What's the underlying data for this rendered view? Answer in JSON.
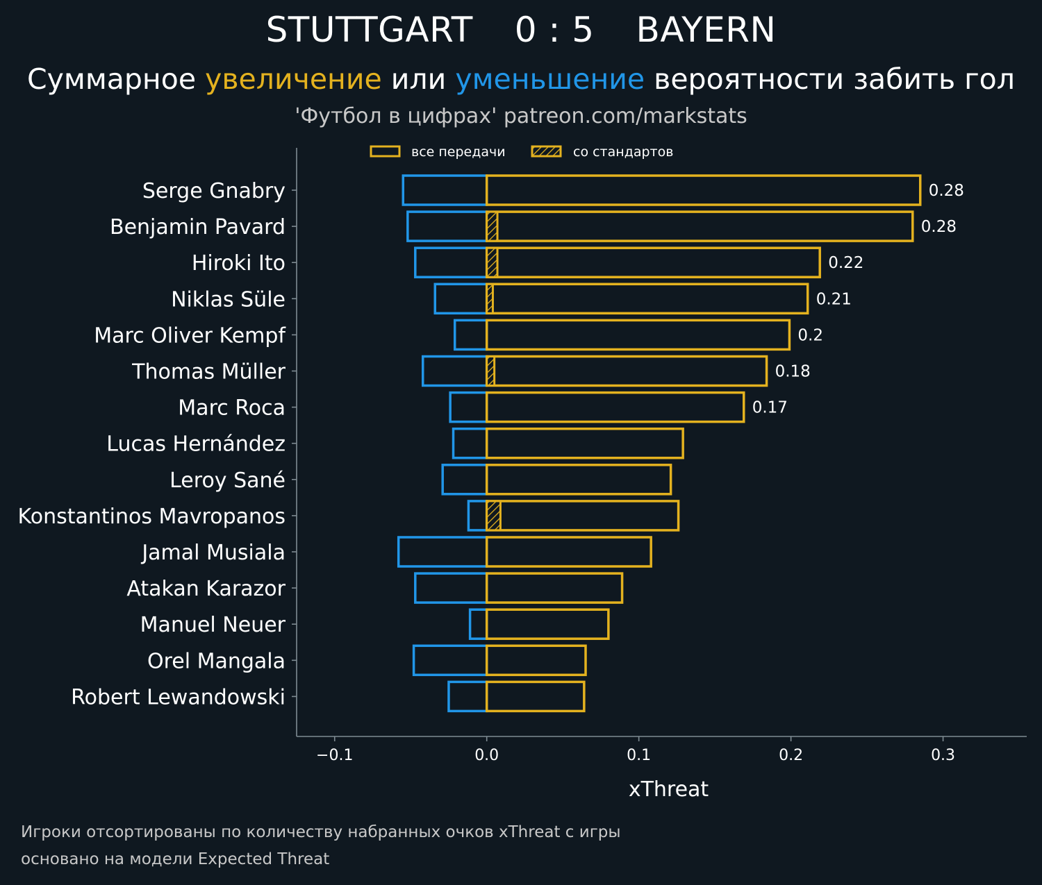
{
  "header": {
    "home_team": "STUTTGART",
    "score": "0 : 5",
    "away_team": "BAYERN"
  },
  "subtitle": {
    "part1": "Суммарное ",
    "increase_word": "увеличение",
    "part2": " или ",
    "decrease_word": "уменьшение",
    "part3": " вероятности забить гол"
  },
  "source": "'Футбол в цифрах' patreon.com/markstats",
  "footnotes": {
    "line1": "Игроки отсортированы по количеству набранных очков xThreat с игры",
    "line2": "основано на модели Expected Threat"
  },
  "colors": {
    "background": "#0f1820",
    "increase": "#e4b21f",
    "decrease": "#2196e8",
    "axis": "#7f8c93",
    "text": "#ffffff"
  },
  "chart_data": {
    "type": "bar",
    "orientation": "horizontal",
    "xlabel": "xThreat",
    "xlim": [
      -0.125,
      0.355
    ],
    "xticks": [
      -0.1,
      0.0,
      0.1,
      0.2,
      0.3
    ],
    "xtick_labels": [
      "−0.1",
      "0.0",
      "0.1",
      "0.2",
      "0.3"
    ],
    "legend": {
      "placement": "top-center",
      "entries": [
        "все передачи",
        "со стандартов"
      ]
    },
    "categories": [
      "Serge Gnabry",
      "Benjamin Pavard",
      "Hiroki Ito",
      "Niklas Süle",
      "Marc Oliver Kempf",
      "Thomas Müller",
      "Marc Roca",
      "Lucas Hernández",
      "Leroy Sané",
      "Konstantinos Mavropanos",
      "Jamal Musiala",
      "Atakan Karazor",
      "Manuel Neuer",
      "Orel Mangala",
      "Robert Lewandowski"
    ],
    "series": [
      {
        "name": "увеличение (все передачи)",
        "values": [
          0.285,
          0.28,
          0.219,
          0.211,
          0.199,
          0.184,
          0.169,
          0.129,
          0.121,
          0.126,
          0.108,
          0.089,
          0.08,
          0.065,
          0.064
        ]
      },
      {
        "name": "увеличение (со стандартов)",
        "values": [
          0.0,
          0.007,
          0.007,
          0.004,
          0.0,
          0.005,
          0.0,
          0.0,
          0.0,
          0.009,
          0.0,
          0.0,
          0.0,
          0.0,
          0.0
        ]
      },
      {
        "name": "уменьшение",
        "values": [
          -0.055,
          -0.052,
          -0.047,
          -0.034,
          -0.021,
          -0.042,
          -0.024,
          -0.022,
          -0.029,
          -0.012,
          -0.058,
          -0.047,
          -0.011,
          -0.048,
          -0.025
        ]
      }
    ],
    "data_labels": [
      "0.28",
      "0.28",
      "0.22",
      "0.21",
      "0.2",
      "0.18",
      "0.17",
      "",
      "",
      "",
      "",
      "",
      "",
      "",
      ""
    ]
  }
}
